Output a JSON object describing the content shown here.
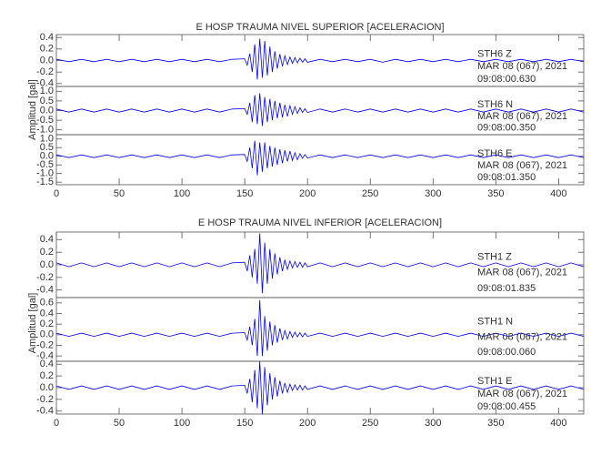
{
  "chart_data": [
    {
      "type": "line",
      "title": "E HOSP TRAUMA NIVEL SUPERIOR [ACELERACION]",
      "ylabel": "Amplitud [gal]",
      "xlim": [
        0,
        420
      ],
      "xticks": [
        0,
        50,
        100,
        150,
        200,
        250,
        300,
        350,
        400
      ],
      "color": "#0000ff",
      "x": [
        0,
        10,
        20,
        30,
        40,
        50,
        60,
        70,
        80,
        90,
        100,
        110,
        120,
        130,
        140,
        150,
        152,
        154,
        156,
        158,
        160,
        162,
        164,
        166,
        168,
        170,
        172,
        174,
        176,
        178,
        180,
        182,
        184,
        186,
        188,
        190,
        192,
        194,
        196,
        198,
        200,
        210,
        220,
        230,
        240,
        250,
        260,
        270,
        280,
        290,
        300,
        310,
        320,
        330,
        340,
        350,
        360,
        370,
        380,
        390,
        400,
        410,
        420
      ],
      "panels": [
        {
          "station": "STH6   Z",
          "date": "MAR 08 (067), 2021",
          "time": "09:08:00.630",
          "ylim": [
            -0.45,
            0.45
          ],
          "yticks": [
            0.4,
            0.2,
            {
              "value": 0,
              "label": "0.0"
            },
            -0.2,
            -0.4
          ],
          "values": [
            0.02,
            -0.02,
            0.02,
            -0.02,
            0.02,
            -0.02,
            0.02,
            -0.02,
            0.02,
            -0.02,
            0.02,
            -0.02,
            0.02,
            -0.02,
            0.02,
            0.03,
            -0.08,
            0.12,
            -0.2,
            0.28,
            -0.33,
            0.38,
            -0.3,
            0.34,
            -0.26,
            0.24,
            -0.2,
            0.16,
            -0.14,
            0.11,
            -0.1,
            0.08,
            -0.07,
            0.06,
            -0.05,
            0.05,
            -0.04,
            0.04,
            -0.03,
            0.03,
            -0.03,
            0.02,
            -0.02,
            0.02,
            -0.02,
            0.02,
            -0.03,
            0.02,
            -0.02,
            0.02,
            -0.02,
            0.02,
            -0.02,
            0.02,
            -0.02,
            0.02,
            -0.02,
            0.02,
            -0.02,
            0.02,
            -0.02,
            0.02,
            -0.02
          ]
        },
        {
          "station": "STH6   N",
          "date": "MAR 08 (067), 2021",
          "time": "09:08:00.350",
          "ylim": [
            -1.25,
            1.25
          ],
          "yticks": [
            {
              "value": 1,
              "label": "1.0"
            },
            0.5,
            {
              "value": 0,
              "label": "0.0"
            },
            -0.5,
            {
              "value": -1,
              "label": "-1.0"
            }
          ],
          "values": [
            0.08,
            -0.08,
            0.08,
            -0.08,
            0.08,
            -0.08,
            0.08,
            -0.08,
            0.08,
            -0.08,
            0.08,
            -0.08,
            0.08,
            -0.08,
            0.08,
            0.1,
            -0.2,
            0.4,
            -0.6,
            0.8,
            -0.7,
            0.9,
            -0.8,
            0.7,
            -0.6,
            0.6,
            -0.5,
            0.5,
            -0.4,
            0.4,
            -0.35,
            0.3,
            -0.3,
            0.25,
            -0.2,
            0.2,
            -0.15,
            0.15,
            -0.1,
            0.1,
            -0.1,
            0.08,
            -0.08,
            0.08,
            -0.08,
            0.08,
            -0.08,
            0.08,
            -0.08,
            0.08,
            -0.08,
            0.08,
            -0.08,
            0.08,
            -0.08,
            0.08,
            -0.08,
            0.08,
            -0.08,
            0.08,
            -0.08,
            0.08,
            -0.08
          ]
        },
        {
          "station": "STH6   E",
          "date": "MAR 08 (067), 2021",
          "time": "09:08:01.350",
          "ylim": [
            -1.65,
            1.25
          ],
          "yticks": [
            {
              "value": 1,
              "label": "1.0"
            },
            0.5,
            {
              "value": 0,
              "label": "0.0"
            },
            -0.5,
            {
              "value": -1,
              "label": "-1.0"
            },
            -1.5
          ],
          "values": [
            0.08,
            -0.08,
            0.08,
            -0.08,
            0.08,
            -0.08,
            0.08,
            -0.08,
            0.08,
            -0.08,
            0.08,
            -0.08,
            0.08,
            -0.08,
            0.08,
            0.1,
            -0.3,
            0.5,
            -0.7,
            0.9,
            -1.1,
            0.8,
            -0.9,
            0.8,
            -0.7,
            0.6,
            -0.6,
            0.5,
            -0.5,
            0.4,
            -0.4,
            0.35,
            -0.3,
            0.3,
            -0.25,
            0.2,
            -0.2,
            0.15,
            -0.12,
            0.1,
            -0.1,
            0.08,
            -0.08,
            0.08,
            -0.08,
            0.08,
            -0.08,
            0.08,
            -0.08,
            0.08,
            -0.08,
            0.08,
            -0.08,
            0.08,
            -0.08,
            0.08,
            -0.08,
            0.08,
            -0.08,
            0.08,
            -0.08,
            0.08,
            -0.08
          ]
        }
      ]
    },
    {
      "type": "line",
      "title": "E HOSP TRAUMA NIVEL INFERIOR [ACELERACION]",
      "ylabel": "Amplitud [gal]",
      "xlim": [
        0,
        420
      ],
      "xticks": [
        0,
        50,
        100,
        150,
        200,
        250,
        300,
        350,
        400
      ],
      "color": "#0000ff",
      "x": [
        0,
        10,
        20,
        30,
        40,
        50,
        60,
        70,
        80,
        90,
        100,
        110,
        120,
        130,
        140,
        150,
        152,
        154,
        156,
        158,
        160,
        162,
        164,
        166,
        168,
        170,
        172,
        174,
        176,
        178,
        180,
        182,
        184,
        186,
        188,
        190,
        192,
        194,
        196,
        198,
        200,
        210,
        220,
        230,
        240,
        250,
        260,
        270,
        280,
        290,
        300,
        310,
        320,
        330,
        340,
        350,
        360,
        370,
        380,
        390,
        400,
        410,
        420
      ],
      "panels": [
        {
          "station": "STH1   Z",
          "date": "MAR 08 (067), 2021",
          "time": "09:08:01.835",
          "ylim": [
            -0.52,
            0.52
          ],
          "yticks": [
            0.4,
            0.2,
            {
              "value": 0,
              "label": "0.0"
            },
            -0.2,
            -0.4
          ],
          "values": [
            0.03,
            -0.03,
            0.03,
            -0.03,
            0.03,
            -0.03,
            0.03,
            -0.03,
            0.03,
            -0.03,
            0.03,
            -0.03,
            0.03,
            -0.03,
            0.03,
            0.04,
            -0.1,
            0.15,
            -0.2,
            0.25,
            -0.3,
            0.5,
            -0.45,
            0.35,
            -0.3,
            0.25,
            -0.22,
            0.18,
            -0.15,
            0.12,
            -0.1,
            0.08,
            -0.07,
            0.06,
            -0.05,
            0.05,
            -0.04,
            0.04,
            -0.04,
            0.03,
            -0.03,
            0.03,
            -0.03,
            0.03,
            -0.03,
            0.03,
            -0.03,
            0.03,
            -0.03,
            0.03,
            -0.03,
            0.03,
            -0.03,
            0.03,
            -0.03,
            0.03,
            -0.03,
            0.03,
            -0.03,
            0.03,
            -0.03,
            0.03,
            -0.03
          ]
        },
        {
          "station": "STH1   N",
          "date": "MAR 08 (067), 2021",
          "time": "09:08:00.060",
          "ylim": [
            -0.5,
            0.7
          ],
          "yticks": [
            0.6,
            0.4,
            0.2,
            {
              "value": 0,
              "label": "0.0"
            },
            -0.2,
            -0.4
          ],
          "values": [
            0.03,
            -0.03,
            0.03,
            -0.03,
            0.03,
            -0.03,
            0.03,
            -0.03,
            0.03,
            -0.03,
            0.03,
            -0.03,
            0.03,
            -0.03,
            0.03,
            0.04,
            -0.1,
            0.15,
            -0.2,
            0.3,
            -0.4,
            0.65,
            -0.4,
            0.35,
            -0.3,
            0.25,
            -0.2,
            0.18,
            -0.15,
            0.12,
            -0.1,
            0.08,
            -0.08,
            0.06,
            -0.05,
            0.05,
            -0.04,
            0.04,
            -0.04,
            0.03,
            -0.03,
            0.03,
            -0.03,
            0.03,
            -0.03,
            0.03,
            -0.03,
            0.03,
            -0.03,
            0.03,
            -0.03,
            0.03,
            -0.03,
            0.03,
            -0.03,
            0.03,
            -0.03,
            0.03,
            -0.03,
            0.03,
            -0.03,
            0.03,
            -0.03
          ]
        },
        {
          "station": "STH1   E",
          "date": "MAR 08 (067), 2021",
          "time": "09:08:00.455",
          "ylim": [
            -0.45,
            0.45
          ],
          "yticks": [
            0.4,
            0.2,
            {
              "value": 0,
              "label": "0.0"
            },
            -0.2,
            -0.4
          ],
          "values": [
            0.03,
            -0.03,
            0.03,
            -0.03,
            0.03,
            -0.03,
            0.03,
            -0.03,
            0.03,
            -0.03,
            0.03,
            -0.03,
            0.03,
            -0.03,
            0.03,
            0.04,
            -0.1,
            0.15,
            -0.25,
            0.3,
            -0.35,
            0.45,
            -0.45,
            0.35,
            -0.3,
            0.25,
            -0.2,
            0.18,
            -0.15,
            0.12,
            -0.1,
            0.08,
            -0.08,
            0.06,
            -0.05,
            0.05,
            -0.04,
            0.04,
            -0.04,
            0.03,
            -0.03,
            0.03,
            -0.03,
            0.03,
            -0.03,
            0.03,
            -0.03,
            0.03,
            -0.03,
            0.03,
            -0.03,
            0.03,
            -0.03,
            0.03,
            -0.03,
            0.03,
            -0.03,
            0.03,
            -0.03,
            0.03,
            -0.03,
            0.03,
            -0.03
          ]
        }
      ]
    }
  ]
}
